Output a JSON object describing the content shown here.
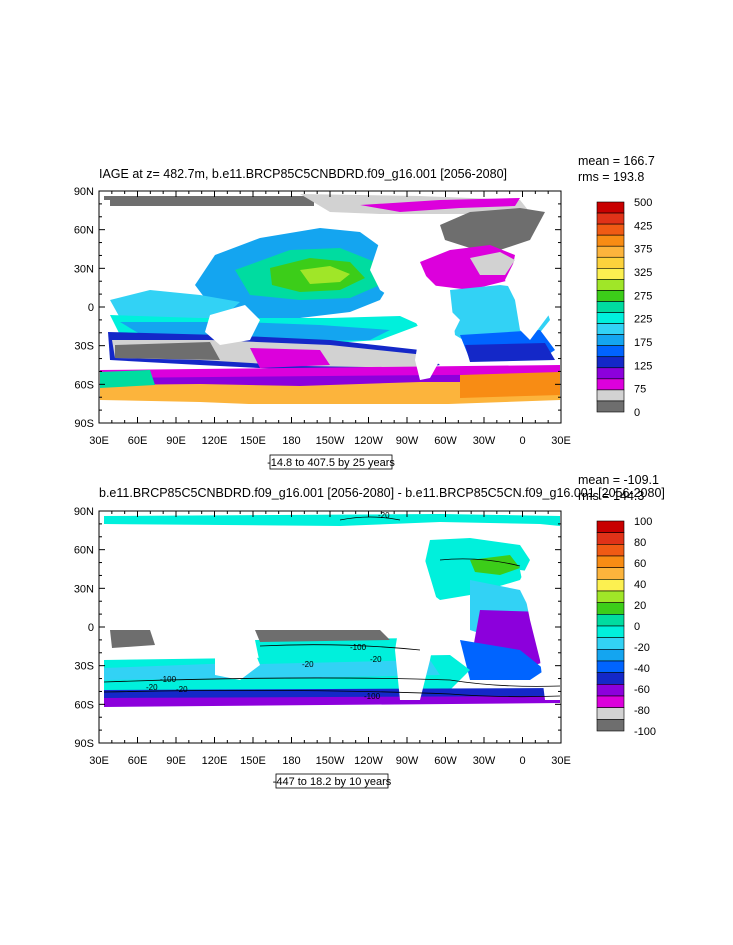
{
  "panels": [
    {
      "title": "IAGE at z= 482.7m, b.e11.BRCP85C5CNBDRD.f09_g16.001 [2056-2080]",
      "stats": [
        "mean = 166.7",
        "rms = 193.8"
      ],
      "range_note": "-14.8 to 407.5 by 25 years",
      "y_ticks": [
        "90N",
        "60N",
        "30N",
        "0",
        "30S",
        "60S",
        "90S"
      ],
      "x_ticks": [
        "30E",
        "60E",
        "90E",
        "120E",
        "150E",
        "180",
        "150W",
        "120W",
        "90W",
        "60W",
        "30W",
        "0",
        "30E"
      ],
      "colorbar": {
        "labels": [
          "500",
          "425",
          "375",
          "325",
          "275",
          "225",
          "175",
          "125",
          "75",
          "0"
        ],
        "colors": [
          "#c80000",
          "#e03218",
          "#f05a14",
          "#f88c14",
          "#fcb43c",
          "#fcd23c",
          "#fcf050",
          "#a0e628",
          "#3ccd19",
          "#00dca0",
          "#00f0dc",
          "#32d2f5",
          "#14a5f0",
          "#0064ff",
          "#1428c8",
          "#8c00dc",
          "#dc00dc",
          "#d2d2d2",
          "#6e6e6e"
        ]
      }
    },
    {
      "title": "b.e11.BRCP85C5CNBDRD.f09_g16.001 [2056-2080] - b.e11.BRCP85C5CN.f09_g16.001 [2056-2080]",
      "stats": [
        "mean = -109.1",
        "rms = 144.3"
      ],
      "range_note": "-447 to 18.2 by 10 years",
      "y_ticks": [
        "90N",
        "60N",
        "30N",
        "0",
        "30S",
        "60S",
        "90S"
      ],
      "x_ticks": [
        "30E",
        "60E",
        "90E",
        "120E",
        "150E",
        "180",
        "150W",
        "120W",
        "90W",
        "60W",
        "30W",
        "0",
        "30E"
      ],
      "colorbar": {
        "labels": [
          "100",
          "80",
          "60",
          "40",
          "20",
          "0",
          "-20",
          "-40",
          "-60",
          "-80",
          "-100"
        ],
        "colors": [
          "#c80000",
          "#e03218",
          "#f05a14",
          "#f88c14",
          "#fcb43c",
          "#fcf050",
          "#a0e628",
          "#3ccd19",
          "#00dca0",
          "#00f0dc",
          "#32d2f5",
          "#14a5f0",
          "#0064ff",
          "#1428c8",
          "#8c00dc",
          "#dc00dc",
          "#d2d2d2",
          "#6e6e6e"
        ]
      },
      "contour_labels": [
        "-20",
        "-100",
        "-20",
        "-20",
        "-100",
        "-20",
        "-20",
        "-100"
      ]
    }
  ],
  "colors": {
    "land": "#ffffff",
    "frame": "#000000"
  }
}
